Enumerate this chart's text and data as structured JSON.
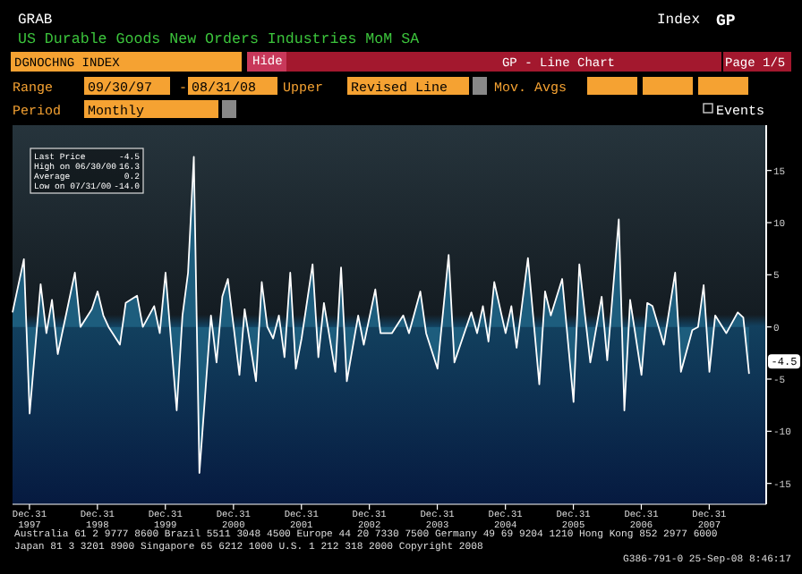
{
  "chart_data": {
    "type": "area",
    "title": "US Durable Goods New Orders Industries MoM SA",
    "x": [
      "1997-10",
      "1997-12",
      "1998-01",
      "1998-03",
      "1998-04",
      "1998-05",
      "1998-06",
      "1998-09",
      "1998-10",
      "1998-12",
      "1999-01",
      "1999-02",
      "1999-03",
      "1999-05",
      "1999-06",
      "1999-08",
      "1999-09",
      "1999-11",
      "1999-12",
      "2000-01",
      "2000-03",
      "2000-04",
      "2000-05",
      "2000-06",
      "2000-07",
      "2000-09",
      "2000-10",
      "2000-11",
      "2000-12",
      "2001-02",
      "2001-03",
      "2001-05",
      "2001-06",
      "2001-07",
      "2001-08",
      "2001-09",
      "2001-10",
      "2001-11",
      "2001-12",
      "2002-01",
      "2002-03",
      "2002-04",
      "2002-05",
      "2002-07",
      "2002-08",
      "2002-09",
      "2002-11",
      "2002-12",
      "2003-02",
      "2003-03",
      "2003-05",
      "2003-07",
      "2003-08",
      "2003-10",
      "2003-11",
      "2004-01",
      "2004-03",
      "2004-04",
      "2004-07",
      "2004-08",
      "2004-09",
      "2004-10",
      "2004-11",
      "2005-01",
      "2005-02",
      "2005-03",
      "2005-05",
      "2005-07",
      "2005-08",
      "2005-09",
      "2005-11",
      "2006-01",
      "2006-02",
      "2006-04",
      "2006-06",
      "2006-07",
      "2006-09",
      "2006-10",
      "2006-11",
      "2007-01",
      "2007-02",
      "2007-03",
      "2007-05",
      "2007-07",
      "2007-08",
      "2007-10",
      "2007-11",
      "2007-12",
      "2008-01",
      "2008-02",
      "2008-04",
      "2008-06",
      "2008-07",
      "2008-08"
    ],
    "series": [
      {
        "color": "#1d5d7d",
        "values": [
          1.4,
          6.5,
          -8.3,
          4.1,
          -0.6,
          2.6,
          -2.6,
          5.2,
          0,
          1.7,
          3.4,
          1.1,
          0,
          -1.7,
          2.3,
          3,
          0,
          2,
          -0.6,
          5.2,
          -8,
          1.1,
          5.2,
          16.3,
          -14.0,
          1.1,
          -3.4,
          2.9,
          4.6,
          -4.6,
          1.7,
          -5.2,
          4.3,
          0,
          -1.1,
          1.1,
          -2.9,
          5.2,
          -4,
          -1.1,
          6,
          -2.9,
          2.3,
          -4.3,
          5.7,
          -5.2,
          1.1,
          -1.7,
          3.6,
          -0.6,
          -0.6,
          1.1,
          -0.6,
          3.4,
          -0.6,
          -4,
          6.9,
          -3.4,
          1.4,
          -0.6,
          2,
          -1.4,
          4.3,
          -0.6,
          2,
          -2,
          6.6,
          -5.5,
          3.4,
          1.1,
          4.6,
          -7.2,
          6,
          -3.4,
          2.9,
          -3.2,
          10.3,
          -8,
          2.6,
          -4.6,
          2.3,
          2,
          -1.7,
          5.2,
          -4.3,
          -0.3,
          0,
          4,
          -4.3,
          1.1,
          -0.6,
          1.4,
          0.9,
          -4.5
        ]
      }
    ],
    "xlim": [
      "1997-10-01",
      "2008-11-01"
    ],
    "xticks": [
      {
        "value": "1997-12-31",
        "label": "Dec.31 1997"
      },
      {
        "value": "1998-12-31",
        "label": "Dec.31 1998"
      },
      {
        "value": "1999-12-31",
        "label": "Dec.31 1999"
      },
      {
        "value": "2000-12-31",
        "label": "Dec.31 2000"
      },
      {
        "value": "2001-12-31",
        "label": "Dec.31 2001"
      },
      {
        "value": "2002-12-31",
        "label": "Dec.31 2002"
      },
      {
        "value": "2003-12-31",
        "label": "Dec.31 2003"
      },
      {
        "value": "2004-12-31",
        "label": "Dec.31 2004"
      },
      {
        "value": "2005-12-31",
        "label": "Dec.31 2005"
      },
      {
        "value": "2006-12-31",
        "label": "Dec.31 2006"
      },
      {
        "value": "2007-12-31",
        "label": "Dec.31 2007"
      }
    ],
    "ylim": [
      -17,
      19
    ],
    "yticks": [
      -15,
      -10,
      -5,
      0,
      5,
      10,
      15
    ],
    "annotations": [
      "GRAB",
      "Index",
      "GP",
      "DGNOCHNG INDEX",
      "Hide",
      "GP - Line Chart",
      "Page 1/5",
      "Range",
      "09/30/97",
      "-",
      "08/31/08",
      "Upper",
      "Revised Line",
      "Mov. Avgs",
      "Period",
      "Monthly",
      "Events",
      "Last Price",
      "High on 06/30/00",
      "Average",
      "Low on 07/31/00",
      "-4.5",
      "16.3",
      "0.2",
      "-14.0",
      "Australia 61 2 9777 8600 Brazil 5511 3048 4500 Europe 44 20 7330 7500 Germany 49 69 9204 1210 Hong Kong 852 2977 6000",
      "Japan 81 3 3201 8900 Singapore 65 6212 1000 U.S. 1 212 318 2000 Copyright 2008",
      "G386-791-0 25-Sep-08 8:46:17",
      {
        "text": "-4.5",
        "x": "2008-08",
        "y": -4.5
      }
    ]
  }
}
